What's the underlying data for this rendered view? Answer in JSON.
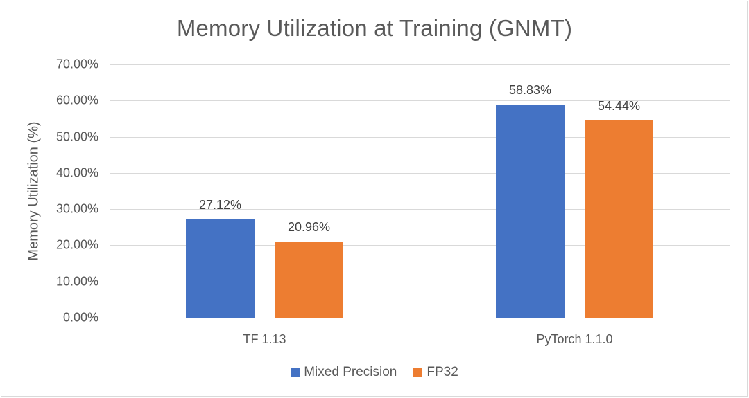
{
  "chart_data": {
    "type": "bar",
    "title": "Memory Utilization at Training (GNMT)",
    "xlabel": "",
    "ylabel": "Memory Utilization (%)",
    "ylim": [
      0,
      70
    ],
    "yticks": [
      "0.00%",
      "10.00%",
      "20.00%",
      "30.00%",
      "40.00%",
      "50.00%",
      "60.00%",
      "70.00%"
    ],
    "grid": true,
    "legend_position": "bottom",
    "categories": [
      "TF 1.13",
      "PyTorch 1.1.0"
    ],
    "series": [
      {
        "name": "Mixed Precision",
        "color": "#4472c4",
        "values": [
          27.12,
          58.83
        ],
        "labels": [
          "27.12%",
          "58.83%"
        ]
      },
      {
        "name": "FP32",
        "color": "#ed7d31",
        "values": [
          20.96,
          54.44
        ],
        "labels": [
          "20.96%",
          "54.44%"
        ]
      }
    ]
  }
}
